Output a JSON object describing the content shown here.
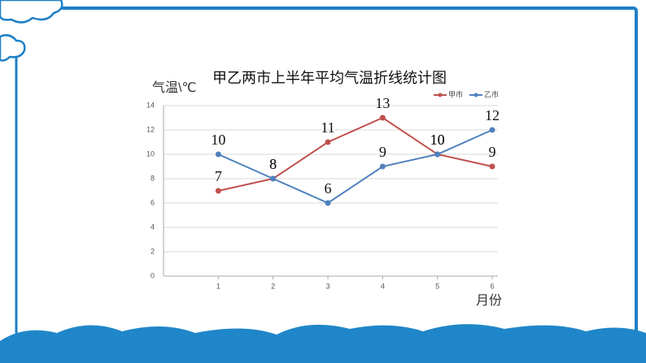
{
  "chart_data": {
    "type": "line",
    "title": "甲乙两市上半年平均气温折线统计图",
    "y_label": "气温\\℃",
    "x_label": "月份",
    "x": [
      1,
      2,
      3,
      4,
      5,
      6
    ],
    "series": [
      {
        "name": "甲市",
        "color": "#c0504d",
        "values": [
          7,
          8,
          11,
          13,
          10,
          9
        ]
      },
      {
        "name": "乙市",
        "color": "#4f81bd",
        "values": [
          10,
          8,
          6,
          9,
          10,
          12
        ]
      }
    ],
    "xlim": [
      0,
      6
    ],
    "xticks": [
      1,
      2,
      3,
      4,
      5,
      6
    ],
    "ylim": [
      0,
      14
    ],
    "yticks": [
      0,
      2,
      4,
      6,
      8,
      10,
      12,
      14
    ],
    "grid": true,
    "legend": "top-right"
  }
}
